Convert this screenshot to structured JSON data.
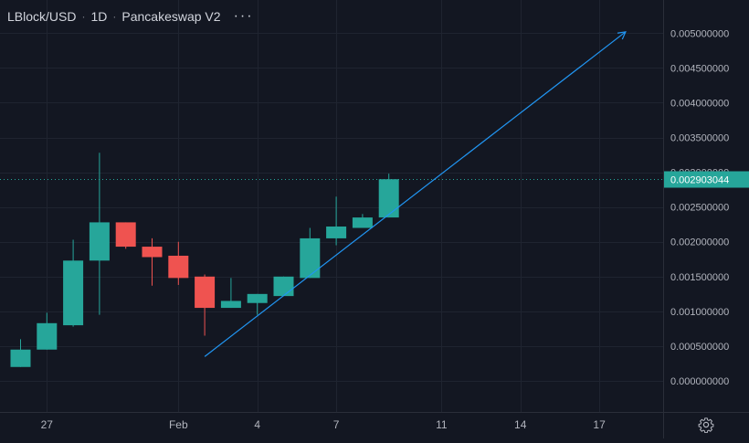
{
  "header": {
    "symbol": "LBlock/USD",
    "interval": "1D",
    "exchange": "Pancakeswap V2",
    "separator": "·",
    "more_icon": "ellipsis-icon"
  },
  "settings_icon": "gear-icon",
  "colors": {
    "background": "#131722",
    "grid": "#1f2430",
    "text": "#b2b5be",
    "up": "#26a69a",
    "down": "#ef5350",
    "trendline": "#2196f3",
    "price_label_bg": "#26a69a"
  },
  "chart_data": {
    "type": "candlestick",
    "ylim": [
      -0.0003,
      0.0054
    ],
    "y_ticks": [
      "0.005000000",
      "0.004500000",
      "0.004000000",
      "0.003500000",
      "0.003000000",
      "0.002500000",
      "0.002000000",
      "0.001500000",
      "0.001000000",
      "0.000500000",
      "0.000000000"
    ],
    "y_tick_values": [
      0.005,
      0.0045,
      0.004,
      0.0035,
      0.003,
      0.0025,
      0.002,
      0.0015,
      0.001,
      0.0005,
      0.0
    ],
    "x_ticks": [
      {
        "label": "27",
        "day": 1
      },
      {
        "label": "Feb",
        "day": 6
      },
      {
        "label": "4",
        "day": 9
      },
      {
        "label": "7",
        "day": 12
      },
      {
        "label": "11",
        "day": 16
      },
      {
        "label": "14",
        "day": 19
      },
      {
        "label": "17",
        "day": 22
      }
    ],
    "candles": [
      {
        "day": 0,
        "open": 0.0002,
        "high": 0.0006,
        "low": 0.0002,
        "close": 0.00045
      },
      {
        "day": 1,
        "open": 0.00045,
        "high": 0.00098,
        "low": 0.00045,
        "close": 0.00083
      },
      {
        "day": 2,
        "open": 0.0008,
        "high": 0.00203,
        "low": 0.00078,
        "close": 0.00173
      },
      {
        "day": 3,
        "open": 0.00173,
        "high": 0.00328,
        "low": 0.00095,
        "close": 0.00228
      },
      {
        "day": 4,
        "open": 0.00228,
        "high": 0.00228,
        "low": 0.0019,
        "close": 0.00193
      },
      {
        "day": 5,
        "open": 0.00193,
        "high": 0.00205,
        "low": 0.00137,
        "close": 0.00178
      },
      {
        "day": 6,
        "open": 0.0018,
        "high": 0.002,
        "low": 0.00138,
        "close": 0.00148
      },
      {
        "day": 7,
        "open": 0.0015,
        "high": 0.00153,
        "low": 0.00065,
        "close": 0.00105
      },
      {
        "day": 8,
        "open": 0.00105,
        "high": 0.00148,
        "low": 0.00105,
        "close": 0.00115
      },
      {
        "day": 9,
        "open": 0.00112,
        "high": 0.00125,
        "low": 0.00095,
        "close": 0.00125
      },
      {
        "day": 10,
        "open": 0.00122,
        "high": 0.0015,
        "low": 0.00122,
        "close": 0.0015
      },
      {
        "day": 11,
        "open": 0.00148,
        "high": 0.0022,
        "low": 0.00148,
        "close": 0.00205
      },
      {
        "day": 12,
        "open": 0.00205,
        "high": 0.00265,
        "low": 0.00195,
        "close": 0.00222
      },
      {
        "day": 13,
        "open": 0.0022,
        "high": 0.0024,
        "low": 0.0022,
        "close": 0.00235
      },
      {
        "day": 14,
        "open": 0.00235,
        "high": 0.00298,
        "low": 0.00235,
        "close": 0.0029
      }
    ],
    "current_price": {
      "label": "0.002903044",
      "value": 0.002903044
    },
    "trendline": {
      "start": {
        "day": 7,
        "value": 0.00035
      },
      "end": {
        "day": 23,
        "value": 0.00502
      }
    }
  }
}
